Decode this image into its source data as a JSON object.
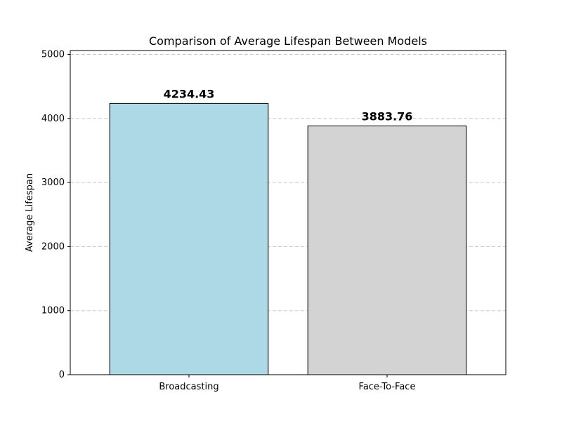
{
  "chart_data": {
    "type": "bar",
    "title": "Comparison of Average Lifespan Between Models",
    "xlabel": "",
    "ylabel": "Average Lifespan",
    "categories": [
      "Broadcasting",
      "Face-To-Face"
    ],
    "values": [
      4234.43,
      3883.76
    ],
    "value_labels": [
      "4234.43",
      "3883.76"
    ],
    "bar_colors": [
      "#add8e6",
      "#d3d3d3"
    ],
    "ylim": [
      0,
      5060
    ],
    "yticks": [
      0,
      1000,
      2000,
      3000,
      4000,
      5000
    ],
    "ytick_labels": [
      "0",
      "1000",
      "2000",
      "3000",
      "4000",
      "5000"
    ],
    "grid": "y-dashed",
    "legend": "none"
  }
}
